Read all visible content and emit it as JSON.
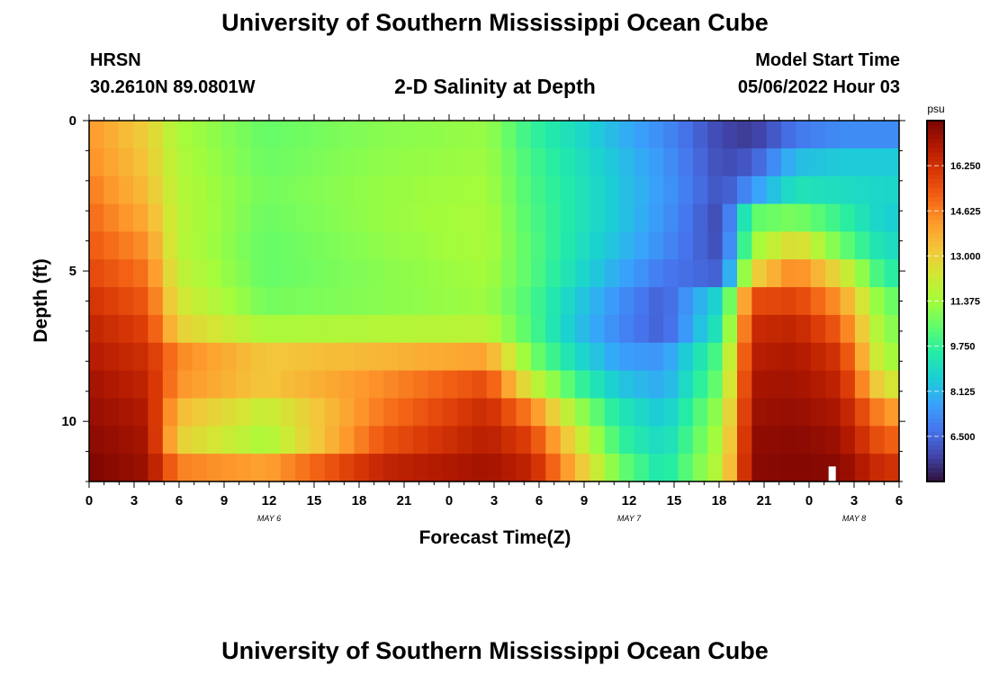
{
  "header": {
    "title": "University of Southern Mississippi Ocean Cube",
    "station": "HRSN",
    "coords": "30.2610N  89.0801W",
    "plot_title": "2-D Salinity at Depth",
    "model_start_label": "Model Start Time",
    "model_start_value": "05/06/2022 Hour 03"
  },
  "footer": {
    "title": "University of Southern Mississippi Ocean Cube"
  },
  "chart_data": {
    "type": "heatmap",
    "title": "2-D Salinity at Depth",
    "xlabel": "Forecast Time(Z)",
    "ylabel": "Depth (ft)",
    "x_hours": [
      0,
      1,
      2,
      3,
      4,
      5,
      6,
      7,
      8,
      9,
      10,
      11,
      12,
      13,
      14,
      15,
      16,
      17,
      18,
      19,
      20,
      21,
      22,
      23,
      24,
      25,
      26,
      27,
      28,
      29,
      30,
      31,
      32,
      33,
      34,
      35,
      36,
      37,
      38,
      39,
      40,
      41,
      42,
      43,
      44,
      45,
      46,
      47,
      48,
      49,
      50,
      51,
      52,
      53,
      54
    ],
    "xlim": [
      0,
      54
    ],
    "xtick_labels": [
      "0",
      "3",
      "6",
      "9",
      "12",
      "15",
      "18",
      "21",
      "0",
      "3",
      "6",
      "9",
      "12",
      "15",
      "18",
      "21",
      "0",
      "3",
      "6"
    ],
    "date_labels": [
      {
        "label": "MAY 6",
        "hour": 12
      },
      {
        "label": "MAY 7",
        "hour": 36
      },
      {
        "label": "MAY 8",
        "hour": 51
      }
    ],
    "depth_ft": [
      0,
      1,
      2,
      3,
      4,
      5,
      6,
      7,
      8,
      9,
      10,
      11,
      12
    ],
    "ylim": [
      0,
      12
    ],
    "ytick_labels": [
      "0",
      "5",
      "10"
    ],
    "colorbar": {
      "unit": "psu",
      "min": 4.875,
      "max": 17.875,
      "tick_labels": [
        "16.250",
        "14.625",
        "13.000",
        "11.375",
        "9.750",
        "8.125",
        "6.500"
      ],
      "colors": [
        "#30123b",
        "#4145ab",
        "#4675ed",
        "#39a2fc",
        "#1bcfd4",
        "#24eca6",
        "#61fc6c",
        "#a4fc3b",
        "#d1e834",
        "#f3c63a",
        "#fe9b2d",
        "#f36315",
        "#d93806",
        "#b11901",
        "#7a0403"
      ]
    },
    "anchor_hours": [
      0,
      4,
      6,
      12,
      20,
      27,
      30,
      33,
      36,
      39,
      43,
      45,
      48,
      51,
      54
    ],
    "salinity_rows": [
      [
        14.2,
        13.0,
        11.5,
        10.5,
        11.0,
        11.2,
        9.8,
        9.0,
        8.0,
        7.2,
        5.8,
        5.6,
        6.8,
        7.2,
        7.2
      ],
      [
        14.4,
        13.2,
        11.6,
        10.6,
        11.1,
        11.3,
        10.0,
        9.2,
        8.3,
        7.4,
        5.9,
        6.2,
        8.2,
        8.5,
        8.5
      ],
      [
        14.7,
        13.4,
        11.7,
        10.7,
        11.2,
        11.4,
        10.1,
        9.3,
        8.4,
        7.5,
        6.0,
        7.4,
        9.2,
        9.0,
        8.8
      ],
      [
        15.0,
        13.8,
        11.8,
        10.6,
        11.2,
        11.5,
        10.2,
        9.3,
        8.4,
        7.4,
        5.8,
        10.4,
        10.8,
        9.8,
        8.6
      ],
      [
        15.3,
        14.3,
        11.8,
        10.5,
        11.1,
        11.5,
        10.3,
        9.2,
        8.2,
        7.2,
        5.9,
        11.2,
        12.8,
        10.6,
        9.0
      ],
      [
        15.7,
        14.8,
        12.0,
        10.5,
        11.0,
        11.4,
        10.3,
        9.0,
        7.8,
        6.8,
        6.3,
        12.8,
        14.6,
        12.6,
        9.6
      ],
      [
        16.2,
        15.3,
        12.4,
        10.7,
        11.0,
        11.3,
        10.1,
        8.6,
        7.3,
        6.3,
        9.0,
        15.6,
        15.8,
        14.2,
        10.6
      ],
      [
        16.6,
        15.8,
        13.0,
        11.5,
        11.7,
        11.8,
        10.2,
        8.4,
        7.1,
        6.3,
        9.5,
        16.4,
        16.6,
        15.2,
        11.0
      ],
      [
        16.9,
        16.3,
        14.5,
        13.2,
        13.6,
        14.0,
        10.8,
        9.0,
        7.6,
        7.4,
        10.4,
        16.8,
        17.0,
        16.1,
        11.4
      ],
      [
        17.2,
        16.6,
        14.3,
        13.2,
        14.4,
        15.6,
        12.2,
        10.0,
        8.4,
        7.8,
        10.8,
        17.1,
        17.2,
        16.6,
        12.4
      ],
      [
        17.4,
        16.9,
        13.5,
        12.0,
        14.8,
        16.4,
        14.6,
        11.4,
        9.3,
        8.4,
        11.4,
        17.3,
        17.4,
        17.0,
        14.2
      ],
      [
        17.6,
        17.1,
        13.0,
        11.5,
        15.4,
        16.8,
        15.8,
        12.6,
        9.8,
        8.8,
        11.7,
        17.5,
        17.6,
        17.3,
        15.2
      ],
      [
        17.8,
        17.3,
        14.6,
        14.0,
        16.6,
        17.2,
        16.6,
        13.6,
        10.6,
        9.2,
        12.0,
        17.6,
        17.7,
        17.6,
        16.2
      ]
    ]
  }
}
